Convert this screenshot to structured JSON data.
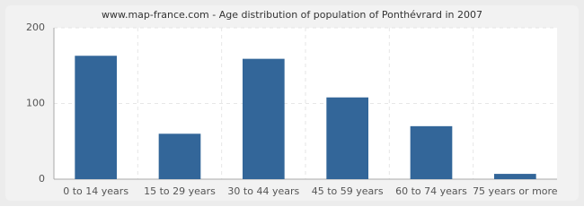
{
  "chart_data": {
    "type": "bar",
    "title": "www.map-france.com - Age distribution of population of Ponthévrard in 2007",
    "categories": [
      "0 to 14 years",
      "15 to 29 years",
      "30 to 44 years",
      "45 to 59 years",
      "60 to 74 years",
      "75 years or more"
    ],
    "values": [
      163,
      60,
      159,
      108,
      70,
      7
    ],
    "color": "#336699",
    "ylim": [
      0,
      200
    ],
    "yticks": [
      0,
      100,
      200
    ],
    "grid": true
  }
}
